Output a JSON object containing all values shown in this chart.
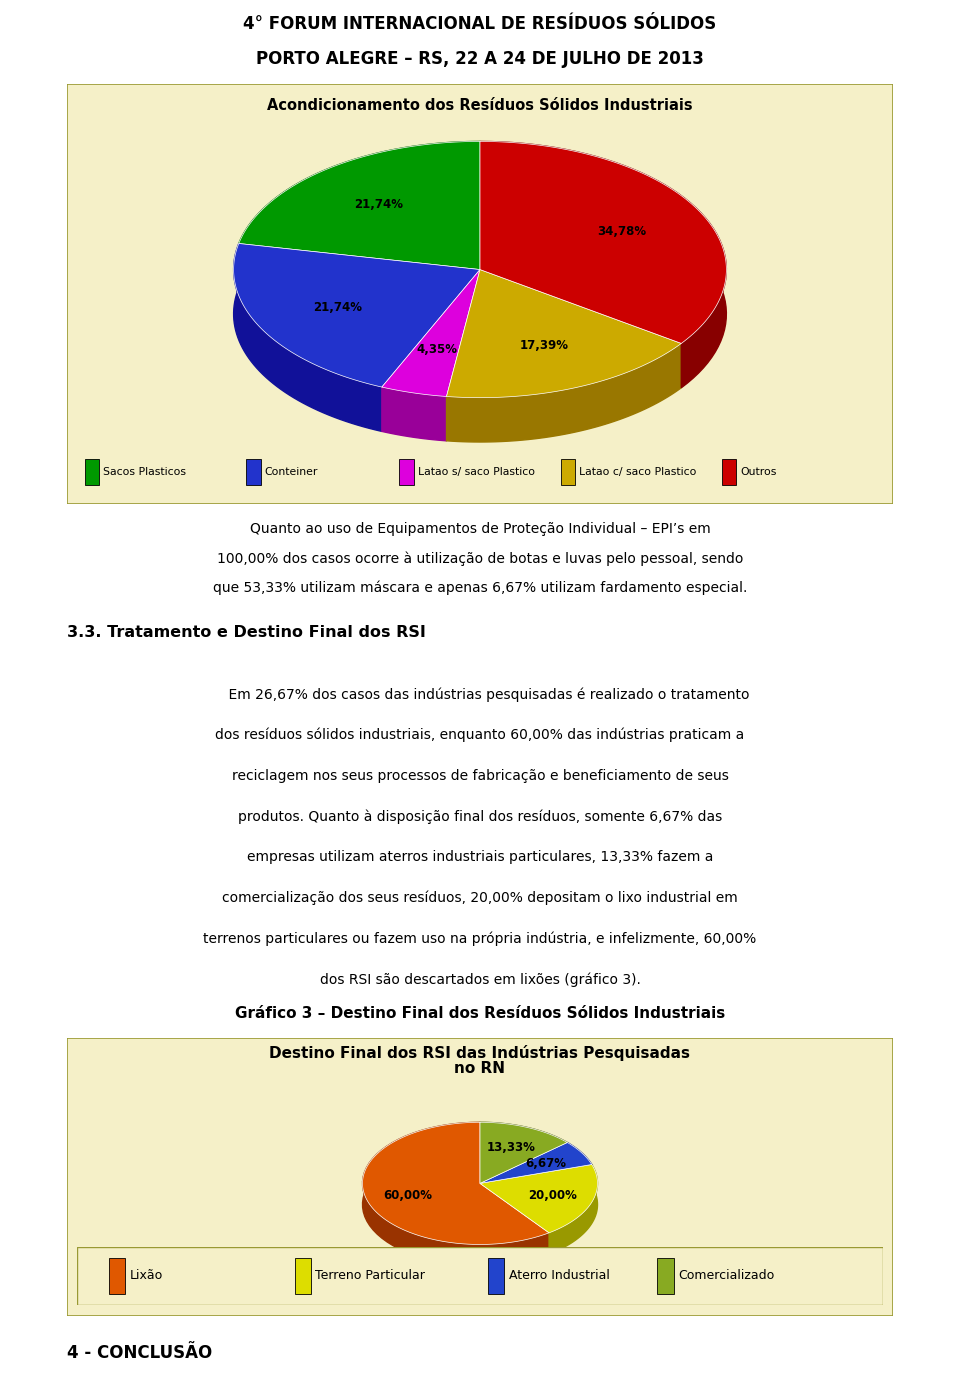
{
  "page_title_line1": "4° FORUM INTERNACIONAL DE RESÍDUOS SÓLIDOS",
  "page_title_line2": "PORTO ALEGRE – RS, 22 A 24 DE JULHO DE 2013",
  "chart1_title": "Acondicionamento dos Resíduos Sólidos Industriais",
  "chart1_values": [
    21.74,
    21.74,
    4.35,
    17.39,
    34.78
  ],
  "chart1_labels": [
    "21,74%",
    "21,74%",
    "4,35%",
    "17,39%",
    "34,78%"
  ],
  "chart1_colors": [
    "#009900",
    "#2233cc",
    "#dd00dd",
    "#ccaa00",
    "#cc0000"
  ],
  "chart1_shadow_colors": [
    "#006600",
    "#111199",
    "#990099",
    "#997700",
    "#880000"
  ],
  "chart1_legend": [
    "Sacos Plasticos",
    "Conteiner",
    "Latao s/ saco Plastico",
    "Latao c/ saco Plastico",
    "Outros"
  ],
  "chart1_legend_colors": [
    "#009900",
    "#2233cc",
    "#dd00dd",
    "#ccaa00",
    "#cc0000"
  ],
  "paragraph1": "Quanto ao uso de Equipamentos de Proteção Individual – EPI’s em\n100,00% dos casos ocorre à utilização de botas e luvas pelo pessoal, sendo\nque 53,33% utilizam máscara e apenas 6,67% utilizam fardamento especial.",
  "section_title": "3.3. Tratamento e Destino Final dos RSI",
  "paragraph2_lines": [
    "    Em 26,67% dos casos das indústrias pesquisadas é realizado o tratamento",
    "dos resíduos sólidos industriais, enquanto 60,00% das indústrias praticam a",
    "reciclagem nos seus processos de fabricação e beneficiamento de seus",
    "produtos. Quanto à disposição final dos resíduos, somente 6,67% das",
    "empresas utilizam aterros industriais particulares, 13,33% fazem a",
    "comercialização dos seus resíduos, 20,00% depositam o lixo industrial em",
    "terrenos particulares ou fazem uso na própria indústria, e infelizmente, 60,00%",
    "dos RSI são descartados em lixões (gráfico 3)."
  ],
  "grafico3_title": "Gráfico 3 – Destino Final dos Resíduos Sólidos Industriais",
  "chart2_title_line1": "Destino Final dos RSI das Indústrias Pesquisadas",
  "chart2_title_line2": "no RN",
  "chart2_values": [
    60.0,
    20.0,
    6.67,
    13.33
  ],
  "chart2_labels": [
    "60,00%",
    "20,00%",
    "6,67%",
    "13,33%"
  ],
  "chart2_colors": [
    "#e05800",
    "#dddd00",
    "#2244cc",
    "#88aa22"
  ],
  "chart2_shadow_colors": [
    "#993300",
    "#999900",
    "#112288",
    "#556611"
  ],
  "chart2_legend": [
    "Lixão",
    "Terreno Particular",
    "Aterro Industrial",
    "Comercializado"
  ],
  "chart2_legend_colors": [
    "#e05800",
    "#dddd00",
    "#2244cc",
    "#88aa22"
  ],
  "conclusion_title": "4 - CONCLUSÃO",
  "box_bg_color": "#f5f0c8",
  "box_border_color": "#999933"
}
